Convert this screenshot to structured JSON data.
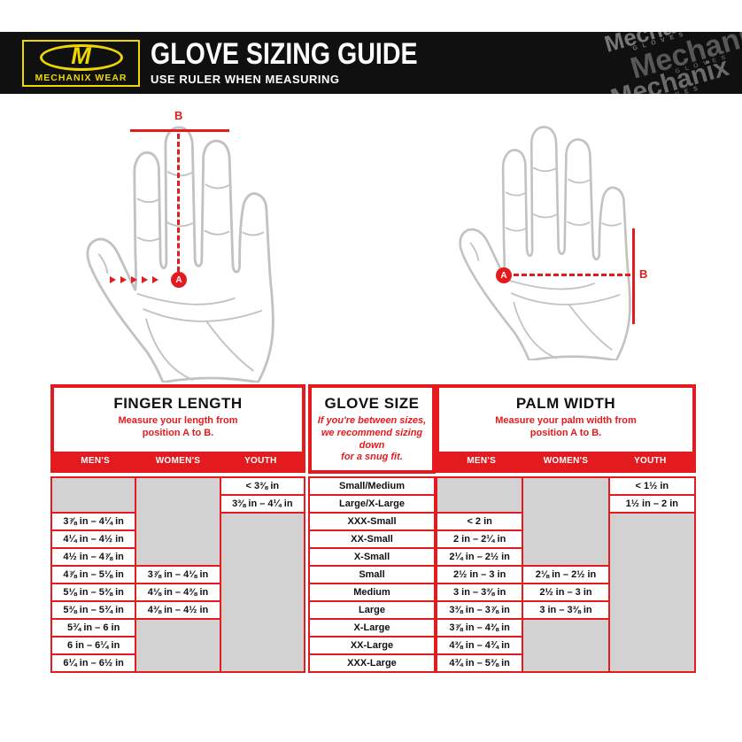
{
  "header": {
    "brand_name": "MECHANIX WEAR",
    "logo_m": "M",
    "title": "GLOVE SIZING GUIDE",
    "subtitle": "USE RULER WHEN MEASURING",
    "watermark_word": "Mechanix",
    "watermark_sub": "G L O V E S"
  },
  "markers": {
    "a": "A",
    "b": "B"
  },
  "colors": {
    "accent_red": "#e31b1e",
    "brand_yellow": "#f0d600",
    "bar_black": "#101010",
    "empty_cell_gray": "#d2d2d2",
    "hand_outline_gray": "#c2c2c2"
  },
  "table": {
    "row_count": 11,
    "sections": [
      {
        "id": "finger_length",
        "title": "FINGER LENGTH",
        "description_lines": [
          "Measure your length from",
          "position A to B."
        ],
        "description_italic": false,
        "column_headers": [
          "MEN'S",
          "WOMEN'S",
          "YOUTH"
        ],
        "columns": [
          {
            "id": "mens",
            "cells": [
              null,
              null,
              "3⅞ in – 4¼ in",
              "4¼ in – 4½ in",
              "4½ in – 4⅞ in",
              "4⅞ in – 5⅛ in",
              "5⅛ in – 5⅜ in",
              "5⅜ in – 5¾ in",
              "5¾ in – 6 in",
              "6 in – 6¼ in",
              "6¼ in – 6½ in"
            ]
          },
          {
            "id": "womens",
            "cells": [
              null,
              null,
              null,
              null,
              null,
              "3⅞ in – 4⅛ in",
              "4⅛ in – 4⅜ in",
              "4⅜ in – 4½ in",
              null,
              null,
              null
            ]
          },
          {
            "id": "youth",
            "cells": [
              "< 3⅜ in",
              "3⅜ in – 4¼ in",
              null,
              null,
              null,
              null,
              null,
              null,
              null,
              null,
              null
            ]
          }
        ]
      },
      {
        "id": "glove_size",
        "title": "GLOVE SIZE",
        "description_lines": [
          "If you're between sizes,",
          "we recommend sizing down",
          "for a snug fit."
        ],
        "description_italic": true,
        "column_headers": [],
        "columns": [
          {
            "id": "size",
            "cells": [
              "Small/Medium",
              "Large/X-Large",
              "XXX-Small",
              "XX-Small",
              "X-Small",
              "Small",
              "Medium",
              "Large",
              "X-Large",
              "XX-Large",
              "XXX-Large"
            ]
          }
        ]
      },
      {
        "id": "palm_width",
        "title": "PALM WIDTH",
        "description_lines": [
          "Measure your palm width from",
          "position A to B."
        ],
        "description_italic": false,
        "column_headers": [
          "MEN'S",
          "WOMEN'S",
          "YOUTH"
        ],
        "columns": [
          {
            "id": "mens",
            "cells": [
              null,
              null,
              "< 2 in",
              "2 in – 2¼ in",
              "2¼ in – 2½ in",
              "2½ in – 3 in",
              "3 in – 3⅜ in",
              "3⅜ in – 3⅞ in",
              "3⅞ in – 4⅜ in",
              "4⅜ in – 4¾ in",
              "4¾ in – 5⅜ in"
            ]
          },
          {
            "id": "womens",
            "cells": [
              null,
              null,
              null,
              null,
              null,
              "2⅛ in – 2½ in",
              "2½ in – 3 in",
              "3 in – 3⅜ in",
              null,
              null,
              null
            ]
          },
          {
            "id": "youth",
            "cells": [
              "< 1½ in",
              "1½ in – 2 in",
              null,
              null,
              null,
              null,
              null,
              null,
              null,
              null,
              null
            ]
          }
        ]
      }
    ]
  }
}
